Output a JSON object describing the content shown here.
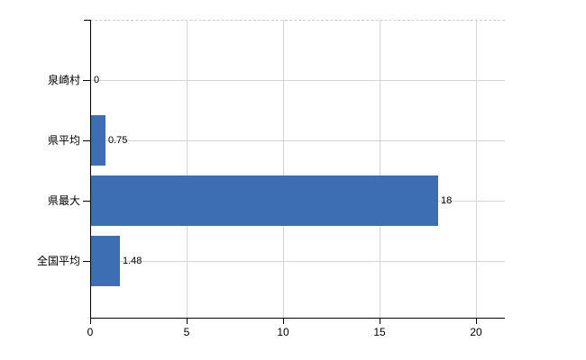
{
  "chart_data": {
    "type": "bar",
    "orientation": "horizontal",
    "title": "",
    "categories": [
      "泉崎村",
      "県平均",
      "県最大",
      "全国平均"
    ],
    "values": [
      0,
      0.75,
      18,
      1.48
    ],
    "value_labels": [
      "0",
      "0.75",
      "18",
      "1.48"
    ],
    "x_tick_labels": [
      "0",
      "5",
      "10",
      "15",
      "20"
    ],
    "x_tick_values": [
      0,
      5,
      10,
      15,
      20
    ],
    "xlim": [
      0,
      21.5
    ],
    "grid": "on",
    "legend": "none",
    "colors": {
      "bar": "#3d6eb4",
      "gridline": "#d6d6d6",
      "top_border_dashed": "#cccccc",
      "axis": "#000000",
      "text": "#000000"
    }
  }
}
